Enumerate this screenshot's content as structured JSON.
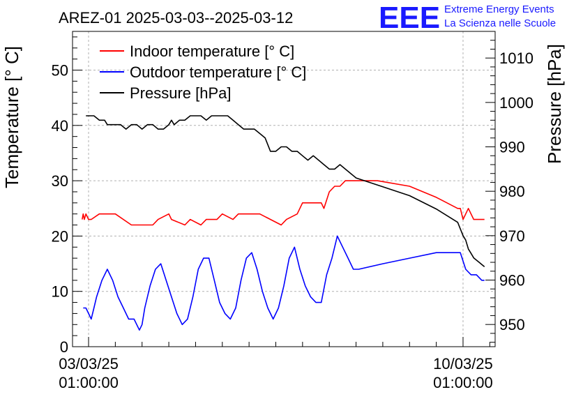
{
  "header": {
    "title": "AREZ-01 2025-03-03--2025-03-12",
    "logo_mark": "EEE",
    "logo_line1": "Extreme Energy Events",
    "logo_line2": "La Scienza nelle Scuole",
    "logo_color": "#1a1aff"
  },
  "chart_data": {
    "type": "line",
    "title": "AREZ-01 2025-03-03--2025-03-12",
    "x_unit": "days from 03/03/25 01:00:00",
    "xlim": [
      -0.3,
      7.6
    ],
    "x_ticks": [
      {
        "x": 0,
        "line1": "03/03/25",
        "line2": "01:00:00"
      },
      {
        "x": 7,
        "line1": "10/03/25",
        "line2": "01:00:00"
      }
    ],
    "y_left": {
      "label": "Temperature [° C]",
      "lim": [
        0,
        57
      ],
      "ticks": [
        0,
        10,
        20,
        30,
        40,
        50
      ]
    },
    "y_right": {
      "label": "Pressure [hPa]",
      "lim": [
        945,
        1016
      ],
      "ticks": [
        950,
        960,
        970,
        980,
        990,
        1000,
        1010
      ]
    },
    "grid": true,
    "legend_position": "top-left",
    "series": [
      {
        "name": "Indoor temperature [° C]",
        "axis": "left",
        "color": "#ff0000",
        "x": [
          -0.12,
          -0.1,
          -0.08,
          -0.05,
          0.0,
          0.05,
          0.2,
          0.3,
          0.5,
          0.8,
          0.85,
          1.2,
          1.3,
          1.5,
          1.55,
          1.8,
          1.9,
          2.1,
          2.2,
          2.4,
          2.5,
          2.7,
          2.8,
          3.0,
          3.2,
          3.6,
          3.7,
          3.9,
          4.0,
          4.2,
          4.25,
          4.3,
          4.35,
          4.4,
          4.5,
          4.6,
          4.7,
          4.8,
          4.85,
          4.9,
          5.0,
          5.2,
          5.4,
          6.0,
          6.5,
          6.9,
          6.95,
          7.0,
          7.05,
          7.1,
          7.2,
          7.4
        ],
        "y": [
          23,
          24,
          23,
          24,
          23,
          23,
          24,
          24,
          24,
          22,
          22,
          22,
          23,
          24,
          23,
          22,
          23,
          22,
          23,
          23,
          24,
          23,
          24,
          24,
          24,
          22,
          23,
          24,
          26,
          26,
          26,
          26,
          26,
          25,
          28,
          29,
          29,
          30,
          30,
          30,
          30,
          30,
          30,
          29,
          27,
          25,
          25,
          23,
          24,
          25,
          23,
          23
        ]
      },
      {
        "name": "Outdoor temperature [° C]",
        "axis": "left",
        "color": "#0000ff",
        "x": [
          -0.1,
          -0.05,
          0.0,
          0.05,
          0.1,
          0.15,
          0.25,
          0.35,
          0.45,
          0.55,
          0.65,
          0.75,
          0.85,
          0.95,
          1.0,
          1.05,
          1.15,
          1.25,
          1.35,
          1.45,
          1.55,
          1.65,
          1.75,
          1.85,
          1.95,
          2.05,
          2.15,
          2.25,
          2.35,
          2.45,
          2.55,
          2.65,
          2.75,
          2.85,
          2.95,
          3.05,
          3.15,
          3.25,
          3.35,
          3.45,
          3.55,
          3.65,
          3.75,
          3.85,
          3.95,
          4.05,
          4.15,
          4.25,
          4.35,
          4.45,
          4.55,
          4.65,
          4.75,
          4.85,
          4.95,
          5.05,
          5.5,
          6.0,
          6.5,
          6.95,
          7.05,
          7.15,
          7.25,
          7.35,
          7.4
        ],
        "y": [
          7,
          7,
          6,
          5,
          7,
          9,
          12,
          14,
          12,
          9,
          7,
          5,
          5,
          3,
          4,
          7,
          11,
          14,
          15,
          12,
          9,
          6,
          4,
          5,
          9,
          14,
          16,
          16,
          12,
          8,
          6,
          5,
          7,
          12,
          16,
          17,
          14,
          10,
          7,
          5,
          7,
          11,
          16,
          18,
          14,
          11,
          9,
          8,
          8,
          13,
          16,
          20,
          18,
          16,
          14,
          14,
          15,
          16,
          17,
          17,
          14,
          13,
          13,
          12,
          12
        ]
      },
      {
        "name": "Pressure [hPa]",
        "axis": "right",
        "color": "#000000",
        "x": [
          -0.05,
          0.1,
          0.2,
          0.3,
          0.35,
          0.45,
          0.6,
          0.7,
          0.8,
          0.9,
          1.0,
          1.1,
          1.2,
          1.3,
          1.4,
          1.5,
          1.55,
          1.6,
          1.7,
          1.8,
          1.9,
          2.0,
          2.1,
          2.2,
          2.3,
          2.4,
          2.5,
          2.6,
          2.7,
          2.8,
          2.9,
          3.0,
          3.1,
          3.2,
          3.3,
          3.4,
          3.5,
          3.6,
          3.7,
          3.8,
          3.9,
          4.0,
          4.1,
          4.2,
          4.3,
          4.4,
          4.5,
          4.6,
          4.7,
          4.8,
          4.9,
          5.0,
          5.5,
          6.0,
          6.5,
          6.9,
          7.0,
          7.05,
          7.1,
          7.15,
          7.2,
          7.3,
          7.4
        ],
        "y": [
          997,
          997,
          996,
          996,
          995,
          995,
          995,
          994,
          995,
          995,
          994,
          995,
          995,
          994,
          994,
          995,
          996,
          995,
          996,
          996,
          997,
          997,
          997,
          996,
          997,
          997,
          997,
          997,
          996,
          995,
          994,
          994,
          994,
          993,
          992,
          989,
          989,
          990,
          990,
          989,
          989,
          988,
          987,
          988,
          987,
          986,
          985,
          985,
          986,
          985,
          984,
          983,
          981,
          979,
          976,
          973,
          970,
          969,
          967,
          966,
          965,
          964,
          963
        ]
      }
    ]
  }
}
